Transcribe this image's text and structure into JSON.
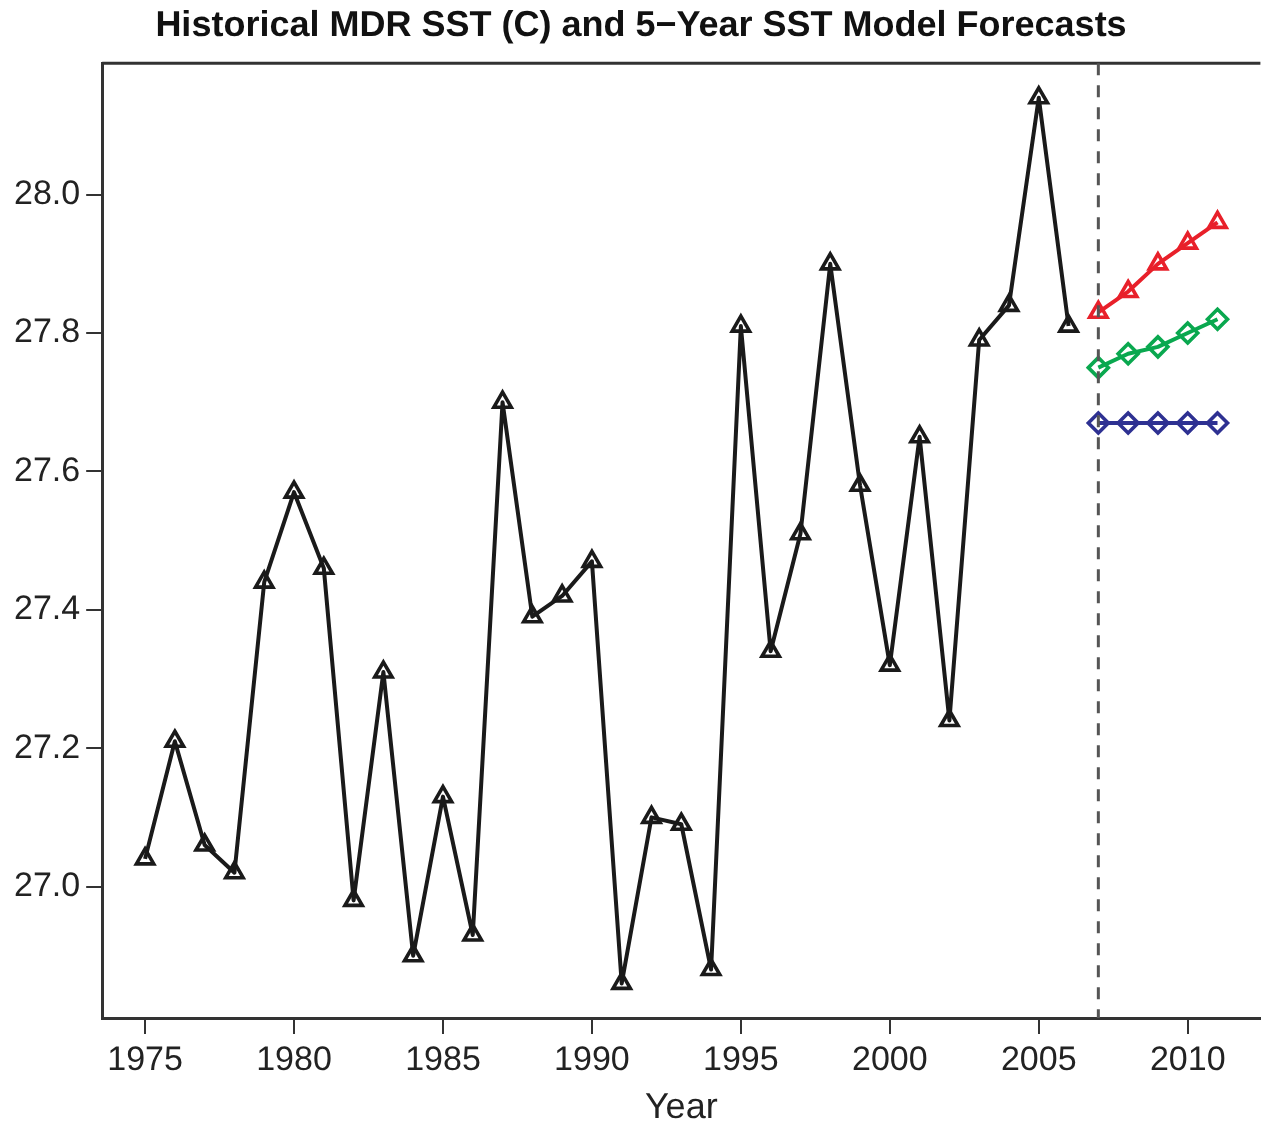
{
  "chart_data": {
    "type": "line",
    "title": "Historical MDR SST (C) and 5−Year SST Model Forecasts",
    "xlabel": "Year",
    "xlim": [
      1973.56,
      2012.44
    ],
    "xticks": [
      1975,
      1980,
      1985,
      1990,
      1995,
      2000,
      2005,
      2010
    ],
    "ylim": [
      26.81,
      28.19
    ],
    "yticks": [
      {
        "value": 27,
        "label": "27.0"
      },
      {
        "value": 27.2,
        "label": "27.2"
      },
      {
        "value": 27.4,
        "label": "27.4"
      },
      {
        "value": 27.6,
        "label": "27.6"
      },
      {
        "value": 27.8,
        "label": "27.8"
      },
      {
        "value": 28,
        "label": "28.0"
      }
    ],
    "grid": false,
    "legend": false,
    "ref_lines": [
      {
        "axis": "x",
        "value": 2007,
        "color": "#555555",
        "line_style": "dashed"
      }
    ],
    "series": [
      {
        "color": "#1a1a1a",
        "marker": "triangle",
        "x": [
          1975,
          1976,
          1977,
          1978,
          1979,
          1980,
          1981,
          1982,
          1983,
          1984,
          1985,
          1986,
          1987,
          1988,
          1989,
          1990,
          1991,
          1992,
          1993,
          1994,
          1995,
          1996,
          1997,
          1998,
          1999,
          2000,
          2001,
          2002,
          2003,
          2004,
          2005,
          2006
        ],
        "values": [
          27.04,
          27.21,
          27.06,
          27.02,
          27.44,
          27.57,
          27.46,
          26.98,
          27.31,
          26.9,
          27.13,
          26.93,
          27.7,
          27.39,
          27.42,
          27.47,
          26.86,
          27.1,
          27.09,
          26.88,
          27.81,
          27.34,
          27.51,
          27.9,
          27.58,
          27.32,
          27.65,
          27.24,
          27.79,
          27.84,
          28.14,
          27.81
        ]
      },
      {
        "color": "#e8202a",
        "marker": "triangle",
        "x": [
          2007,
          2008,
          2009,
          2010,
          2011
        ],
        "values": [
          27.83,
          27.86,
          27.9,
          27.93,
          27.96
        ]
      },
      {
        "color": "#0aa84f",
        "marker": "diamond",
        "x": [
          2007,
          2008,
          2009,
          2010,
          2011
        ],
        "values": [
          27.75,
          27.77,
          27.78,
          27.8,
          27.82
        ]
      },
      {
        "color": "#2e3192",
        "marker": "diamond",
        "x": [
          2007,
          2008,
          2009,
          2010,
          2011
        ],
        "values": [
          27.67,
          27.67,
          27.67,
          27.67,
          27.67
        ]
      }
    ]
  }
}
